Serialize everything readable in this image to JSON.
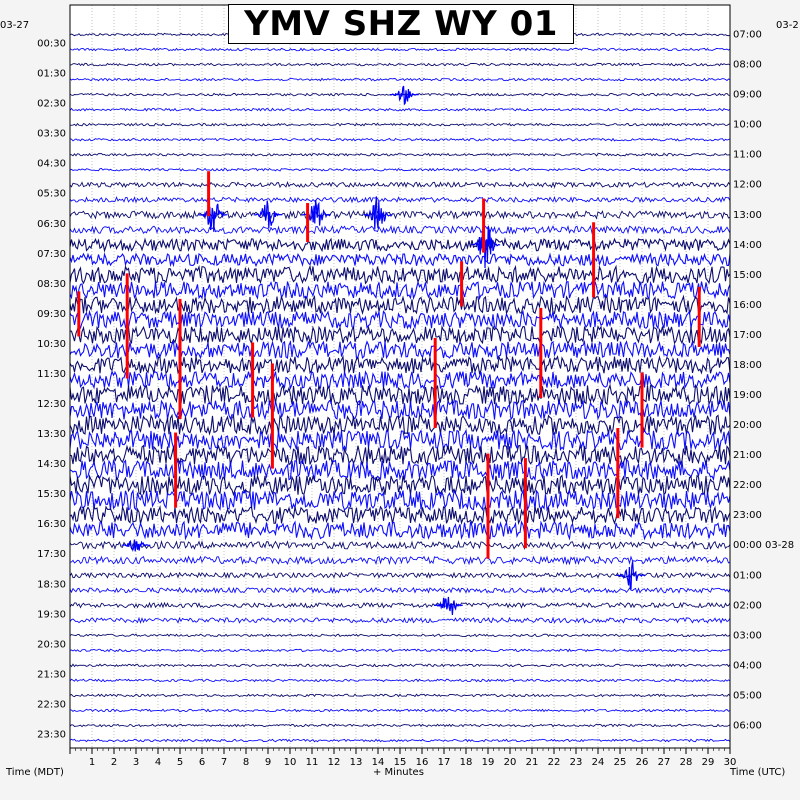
{
  "title": "YMV SHZ WY 01",
  "left_date": "03-27",
  "right_date": "03-2",
  "left_axis_caption": "Time (MDT)",
  "right_axis_caption": "Time (UTC)",
  "x_axis_caption": "+ Minutes",
  "colors": {
    "trace_dark": "#000066",
    "trace_blue": "#0000ff",
    "clipped": "#ff0000",
    "background": "#f4f4f4",
    "plot_bg": "#ffffff"
  },
  "chart_data": {
    "type": "helicorder",
    "title": "YMV SHZ WY 01",
    "xlabel": "+ Minutes",
    "xlim": [
      0,
      30
    ],
    "x_ticks": [
      "1",
      "2",
      "3",
      "4",
      "5",
      "6",
      "7",
      "8",
      "9",
      "10",
      "11",
      "12",
      "13",
      "14",
      "15",
      "16",
      "17",
      "18",
      "19",
      "20",
      "21",
      "22",
      "23",
      "24",
      "25",
      "26",
      "27",
      "28",
      "29",
      "30"
    ],
    "traces_per_hour": 2,
    "left_time_labels": [
      "00:30",
      "01:30",
      "02:30",
      "03:30",
      "04:30",
      "05:30",
      "06:30",
      "07:30",
      "08:30",
      "09:30",
      "10:30",
      "11:30",
      "12:30",
      "13:30",
      "14:30",
      "15:30",
      "16:30",
      "17:30",
      "18:30",
      "19:30",
      "20:30",
      "21:30",
      "22:30",
      "23:30"
    ],
    "right_time_labels": [
      "07:00",
      "08:00",
      "09:00",
      "10:00",
      "11:00",
      "12:00",
      "13:00",
      "14:00",
      "15:00",
      "16:00",
      "17:00",
      "18:00",
      "19:00",
      "20:00",
      "21:00",
      "22:00",
      "23:00",
      "00:00 03-28",
      "01:00",
      "02:00",
      "03:00",
      "04:00",
      "05:00",
      "06:00"
    ],
    "trace_amplitude_by_hour": [
      1,
      1,
      1,
      1,
      1,
      2,
      3,
      5,
      7,
      7,
      7,
      7,
      8,
      8,
      8,
      8,
      7,
      3,
      2,
      2,
      1,
      1,
      1,
      1
    ],
    "bursts": [
      {
        "x": 6.5,
        "hour": 6,
        "amp": 4
      },
      {
        "x": 9.0,
        "hour": 6,
        "amp": 3
      },
      {
        "x": 11.2,
        "hour": 6,
        "amp": 4
      },
      {
        "x": 14.0,
        "hour": 6,
        "amp": 4
      },
      {
        "x": 18.9,
        "hour": 7,
        "amp": 5
      },
      {
        "x": 17.2,
        "hour": 19,
        "amp": 3
      },
      {
        "x": 25.5,
        "hour": 18,
        "amp": 3
      },
      {
        "x": 3.0,
        "hour": 17,
        "amp": 2
      },
      {
        "x": 15.2,
        "hour": 2,
        "amp": 2
      }
    ],
    "clipped_events": [
      {
        "x": 6.3,
        "hour": 5,
        "len": 1.5
      },
      {
        "x": 10.8,
        "hour": 6,
        "len": 1.3
      },
      {
        "x": 18.8,
        "hour": 6,
        "len": 1.8
      },
      {
        "x": 17.8,
        "hour": 8,
        "len": 1.5
      },
      {
        "x": 23.8,
        "hour": 7,
        "len": 2.5
      },
      {
        "x": 2.6,
        "hour": 9,
        "len": 3.5
      },
      {
        "x": 5.0,
        "hour": 10,
        "len": 4
      },
      {
        "x": 8.3,
        "hour": 11,
        "len": 2.5
      },
      {
        "x": 9.2,
        "hour": 12,
        "len": 3.5
      },
      {
        "x": 16.6,
        "hour": 11,
        "len": 3
      },
      {
        "x": 21.4,
        "hour": 10,
        "len": 3
      },
      {
        "x": 26.0,
        "hour": 12,
        "len": 2.5
      },
      {
        "x": 4.8,
        "hour": 14,
        "len": 2.5
      },
      {
        "x": 19.0,
        "hour": 15,
        "len": 3.5
      },
      {
        "x": 24.9,
        "hour": 14,
        "len": 3
      },
      {
        "x": 20.7,
        "hour": 15,
        "len": 3
      },
      {
        "x": 0.4,
        "hour": 9,
        "len": 1.5
      },
      {
        "x": 28.6,
        "hour": 9,
        "len": 2
      }
    ]
  }
}
